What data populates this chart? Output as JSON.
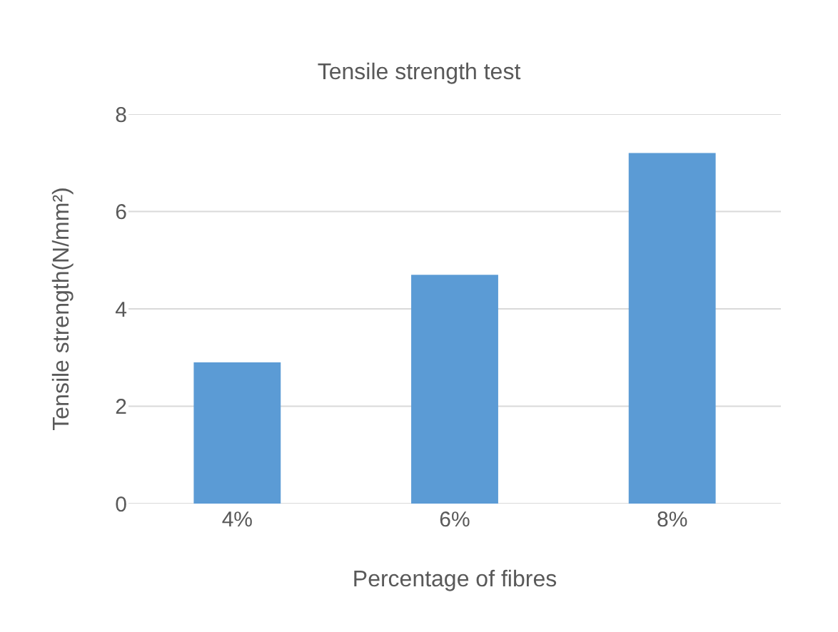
{
  "chart_data": {
    "type": "bar",
    "title": "Tensile strength test",
    "xlabel": "Percentage of fibres",
    "ylabel": "Tensile strength(N/mm²)",
    "categories": [
      "4%",
      "6%",
      "8%"
    ],
    "series": [
      {
        "color": "#5b9bd5",
        "values": [
          2.9,
          4.7,
          7.2
        ]
      }
    ],
    "ylim": [
      0,
      8
    ],
    "yticks": [
      0,
      2,
      4,
      6,
      8
    ],
    "grid": "y"
  }
}
